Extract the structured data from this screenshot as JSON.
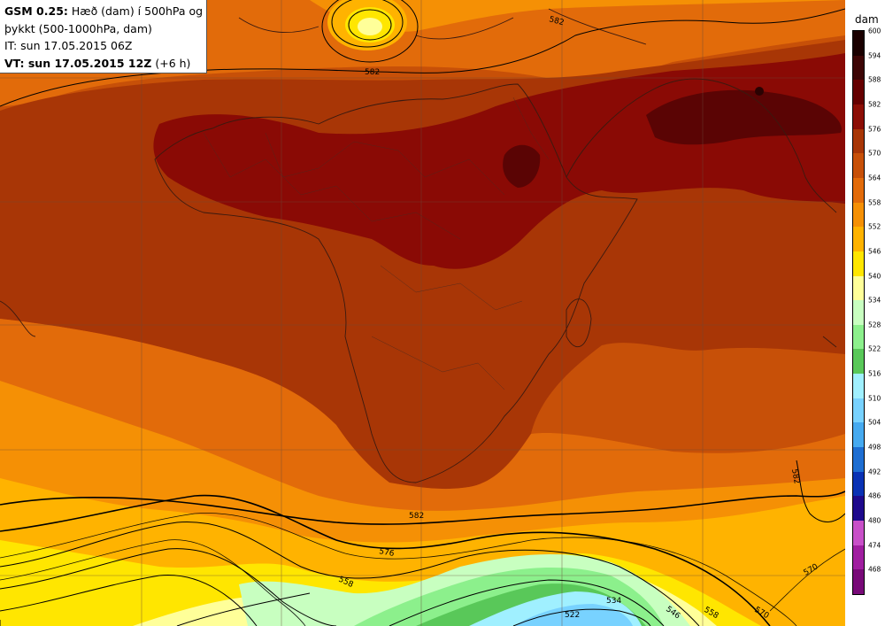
{
  "info": {
    "model": "GSM 0.25:",
    "description_line1": "Hæð (dam) í 500hPa og",
    "description_line2": "þykkt (500-1000hPa, dam)",
    "initial_time": "IT: sun 17.05.2015 06Z",
    "valid_prefix": "VT: sun 17.05.2015 12Z",
    "valid_suffix": "(+6 h)"
  },
  "legend": {
    "unit": "dam",
    "levels": [
      "600",
      "594",
      "588",
      "582",
      "576",
      "570",
      "564",
      "558",
      "552",
      "546",
      "540",
      "534",
      "528",
      "522",
      "516",
      "510",
      "504",
      "498",
      "492",
      "486",
      "480",
      "474",
      "468"
    ],
    "colors": [
      "#1a0000",
      "#3d0505",
      "#660000",
      "#8c0e05",
      "#a83606",
      "#c75008",
      "#e26b0a",
      "#f59005",
      "#ffb300",
      "#ffe600",
      "#ffff99",
      "#c8ffc0",
      "#8cf08c",
      "#59c859",
      "#a0f0ff",
      "#78d2ff",
      "#46aaf0",
      "#1e6ed2",
      "#0a32b4",
      "#1e0a8c",
      "#c850c8",
      "#a01ea0",
      "#780a78",
      "#500050"
    ]
  },
  "contour_labels": [
    "582",
    "582",
    "582",
    "582",
    "576",
    "570",
    "558",
    "534",
    "546",
    "558",
    "570",
    "522"
  ],
  "colors": {
    "deep_red": "#8a0a05",
    "darkest": "#3d0505",
    "brown": "#a83606",
    "dark_orange": "#c75008",
    "orange": "#e26b0a",
    "amber": "#f59005",
    "gold": "#ffb300",
    "yellow": "#ffe600",
    "pale_yellow": "#ffff99",
    "light_green": "#c8ffc0",
    "green": "#8cf08c",
    "mid_green": "#59c859",
    "cyan": "#a0f0ff",
    "sky": "#78d2ff"
  }
}
